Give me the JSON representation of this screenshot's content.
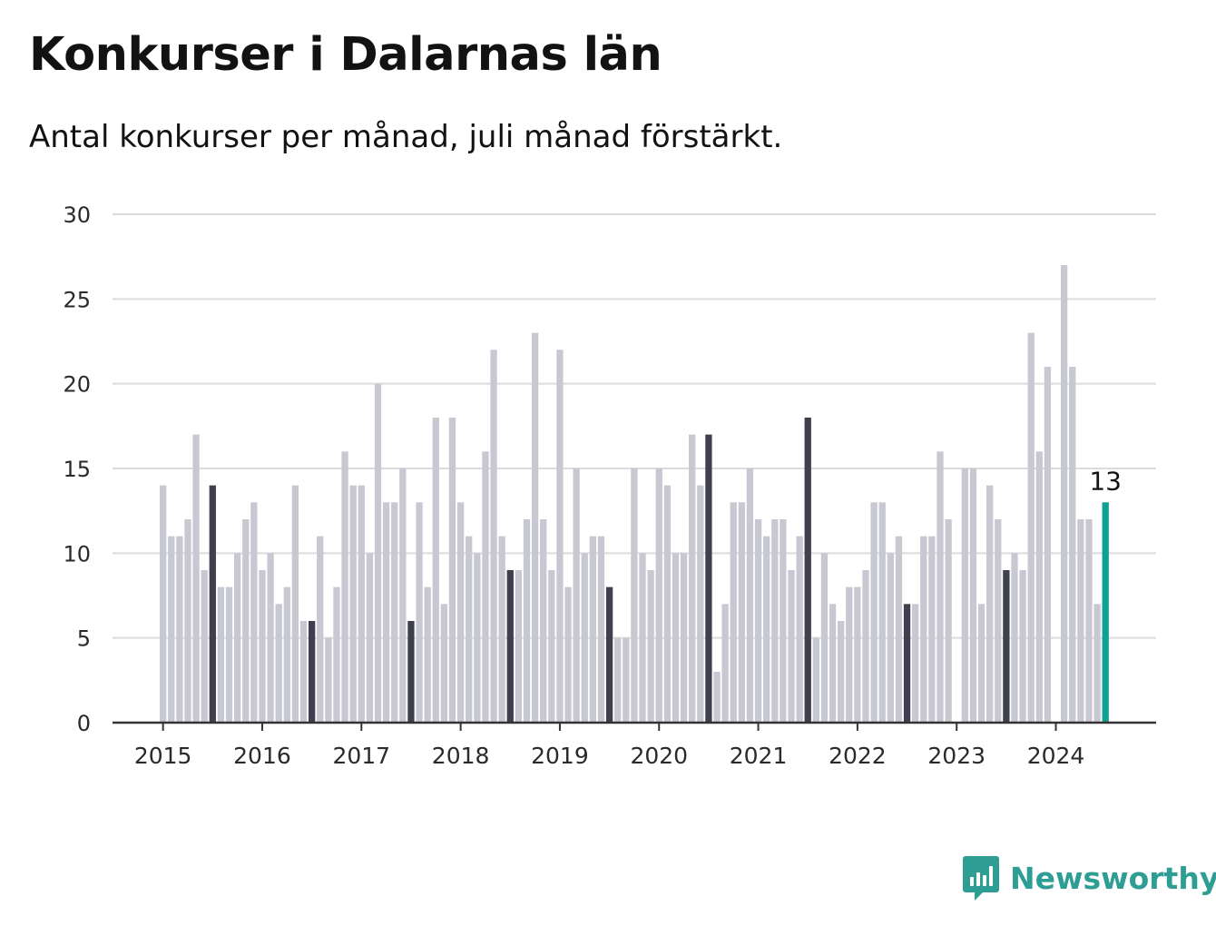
{
  "header": {
    "title": "Konkurser i Dalarnas län",
    "subtitle": "Antal konkurser per månad, juli månad förstärkt."
  },
  "brand": {
    "name": "Newsworthy",
    "color": "#2e9e94",
    "icon": "bar-chart-speech-bubble-icon"
  },
  "colors": {
    "bar": "#c8c8d2",
    "highlight": "#3f3f4d",
    "latest": "#11a096",
    "grid": "#dcdcdc",
    "axis": "#333333"
  },
  "chart_data": {
    "type": "bar",
    "title": "Konkurser i Dalarnas län",
    "subtitle": "Antal konkurser per månad, juli månad förstärkt.",
    "ylim": [
      0,
      30
    ],
    "yticks": [
      0,
      5,
      10,
      15,
      20,
      25,
      30
    ],
    "xticks": [
      "2015",
      "2016",
      "2017",
      "2018",
      "2019",
      "2020",
      "2021",
      "2022",
      "2023",
      "2024"
    ],
    "grid": true,
    "highlight": "July of each year shown darker; latest month (July 2024) shown in teal",
    "annotation": {
      "month": "2024-07",
      "value": 13,
      "label": "13"
    },
    "series": [
      {
        "name": "2015",
        "values": [
          14,
          11,
          11,
          12,
          17,
          9,
          14,
          8,
          8,
          10,
          12,
          13
        ]
      },
      {
        "name": "2016",
        "values": [
          9,
          10,
          7,
          8,
          14,
          6,
          6,
          11,
          5,
          8,
          16,
          14
        ]
      },
      {
        "name": "2017",
        "values": [
          14,
          10,
          20,
          13,
          13,
          15,
          6,
          13,
          8,
          18,
          7,
          18
        ]
      },
      {
        "name": "2018",
        "values": [
          13,
          11,
          10,
          16,
          22,
          11,
          9,
          9,
          12,
          23,
          12,
          9
        ]
      },
      {
        "name": "2019",
        "values": [
          22,
          8,
          15,
          10,
          11,
          11,
          8,
          5,
          5,
          15,
          10,
          9
        ]
      },
      {
        "name": "2020",
        "values": [
          15,
          14,
          10,
          10,
          17,
          14,
          17,
          3,
          7,
          13,
          13,
          15
        ]
      },
      {
        "name": "2021",
        "values": [
          12,
          11,
          12,
          12,
          9,
          11,
          18,
          5,
          10,
          7,
          6,
          8
        ]
      },
      {
        "name": "2022",
        "values": [
          8,
          9,
          13,
          13,
          10,
          11,
          7,
          7,
          11,
          11,
          16,
          12
        ]
      },
      {
        "name": "2023",
        "values": [
          0,
          15,
          15,
          7,
          14,
          12,
          9,
          10,
          9,
          23,
          16,
          21
        ]
      },
      {
        "name": "2024",
        "values": [
          0,
          27,
          21,
          12,
          12,
          7,
          13
        ]
      }
    ]
  }
}
